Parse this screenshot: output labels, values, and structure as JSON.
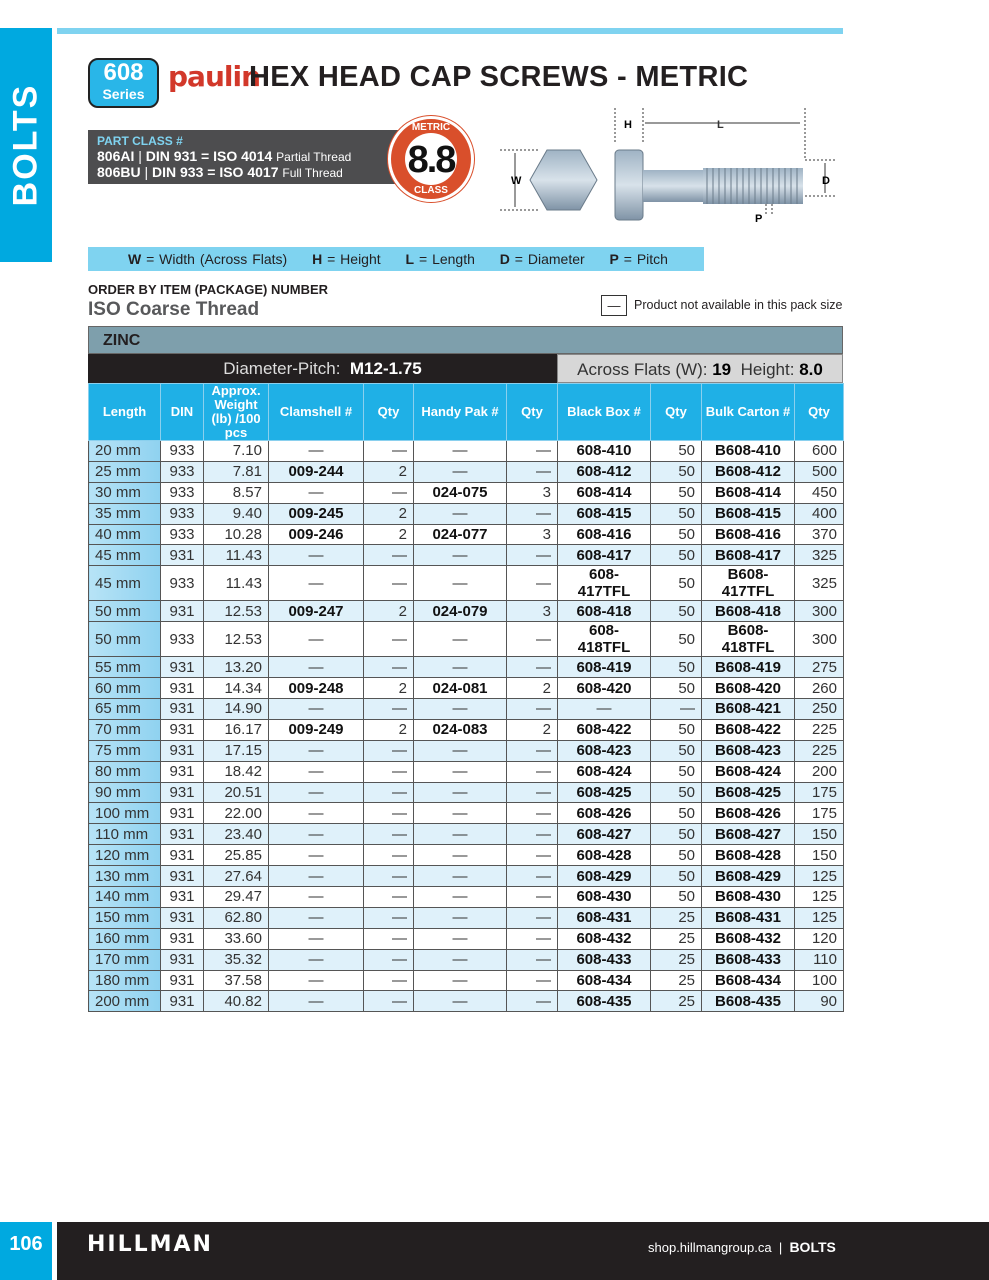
{
  "side_tab": "BOLTS",
  "header": {
    "series_number": "608",
    "series_label": "Series",
    "brand_logo": "paulin",
    "title": "HEX HEAD CAP SCREWS - METRIC"
  },
  "part_class": {
    "heading": "PART CLASS #",
    "lines": [
      {
        "code": "806AI",
        "spec": "DIN 931 = ISO 4014",
        "desc": "Partial Thread"
      },
      {
        "code": "806BU",
        "spec": "DIN 933 = ISO 4017",
        "desc": "Full Thread"
      }
    ]
  },
  "grade_badge": {
    "top": "METRIC",
    "value": "8.8",
    "bottom": "CLASS"
  },
  "diagram_labels": {
    "h": "H",
    "l": "L",
    "w": "W",
    "d": "D",
    "p": "P"
  },
  "legend": [
    {
      "k": "W",
      "v": "= Width (Across Flats)"
    },
    {
      "k": "H",
      "v": "= Height"
    },
    {
      "k": "L",
      "v": "= Length"
    },
    {
      "k": "D",
      "v": "= Diameter"
    },
    {
      "k": "P",
      "v": "= Pitch"
    }
  ],
  "order_label": "ORDER BY ITEM (PACKAGE) NUMBER",
  "thread_label": "ISO Coarse Thread",
  "not_available": {
    "symbol": "—",
    "text": "Product not available in this pack size"
  },
  "finish": "ZINC",
  "diameter_pitch": {
    "label": "Diameter-Pitch:",
    "value": "M12-1.75"
  },
  "across_flats": {
    "label": "Across Flats (W):",
    "value": "19",
    "height_label": "Height:",
    "height_value": "8.0"
  },
  "columns": [
    "Length",
    "DIN",
    "Approx. Weight (lb) /100 pcs",
    "Clamshell #",
    "Qty",
    "Handy Pak #",
    "Qty",
    "Black Box #",
    "Qty",
    "Bulk Carton #",
    "Qty"
  ],
  "rows": [
    [
      "20 mm",
      "933",
      "7.10",
      "—",
      "—",
      "—",
      "—",
      "608-410",
      "50",
      "B608-410",
      "600"
    ],
    [
      "25 mm",
      "933",
      "7.81",
      "009-244",
      "2",
      "—",
      "—",
      "608-412",
      "50",
      "B608-412",
      "500"
    ],
    [
      "30 mm",
      "933",
      "8.57",
      "—",
      "—",
      "024-075",
      "3",
      "608-414",
      "50",
      "B608-414",
      "450"
    ],
    [
      "35 mm",
      "933",
      "9.40",
      "009-245",
      "2",
      "—",
      "—",
      "608-415",
      "50",
      "B608-415",
      "400"
    ],
    [
      "40 mm",
      "933",
      "10.28",
      "009-246",
      "2",
      "024-077",
      "3",
      "608-416",
      "50",
      "B608-416",
      "370"
    ],
    [
      "45 mm",
      "931",
      "11.43",
      "—",
      "—",
      "—",
      "—",
      "608-417",
      "50",
      "B608-417",
      "325"
    ],
    [
      "45 mm",
      "933",
      "11.43",
      "—",
      "—",
      "—",
      "—",
      "608-417TFL",
      "50",
      "B608-417TFL",
      "325"
    ],
    [
      "50 mm",
      "931",
      "12.53",
      "009-247",
      "2",
      "024-079",
      "3",
      "608-418",
      "50",
      "B608-418",
      "300"
    ],
    [
      "50 mm",
      "933",
      "12.53",
      "—",
      "—",
      "—",
      "—",
      "608-418TFL",
      "50",
      "B608-418TFL",
      "300"
    ],
    [
      "55 mm",
      "931",
      "13.20",
      "—",
      "—",
      "—",
      "—",
      "608-419",
      "50",
      "B608-419",
      "275"
    ],
    [
      "60 mm",
      "931",
      "14.34",
      "009-248",
      "2",
      "024-081",
      "2",
      "608-420",
      "50",
      "B608-420",
      "260"
    ],
    [
      "65 mm",
      "931",
      "14.90",
      "—",
      "—",
      "—",
      "—",
      "—",
      "—",
      "B608-421",
      "250"
    ],
    [
      "70 mm",
      "931",
      "16.17",
      "009-249",
      "2",
      "024-083",
      "2",
      "608-422",
      "50",
      "B608-422",
      "225"
    ],
    [
      "75 mm",
      "931",
      "17.15",
      "—",
      "—",
      "—",
      "—",
      "608-423",
      "50",
      "B608-423",
      "225"
    ],
    [
      "80 mm",
      "931",
      "18.42",
      "—",
      "—",
      "—",
      "—",
      "608-424",
      "50",
      "B608-424",
      "200"
    ],
    [
      "90 mm",
      "931",
      "20.51",
      "—",
      "—",
      "—",
      "—",
      "608-425",
      "50",
      "B608-425",
      "175"
    ],
    [
      "100 mm",
      "931",
      "22.00",
      "—",
      "—",
      "—",
      "—",
      "608-426",
      "50",
      "B608-426",
      "175"
    ],
    [
      "110 mm",
      "931",
      "23.40",
      "—",
      "—",
      "—",
      "—",
      "608-427",
      "50",
      "B608-427",
      "150"
    ],
    [
      "120 mm",
      "931",
      "25.85",
      "—",
      "—",
      "—",
      "—",
      "608-428",
      "50",
      "B608-428",
      "150"
    ],
    [
      "130 mm",
      "931",
      "27.64",
      "—",
      "—",
      "—",
      "—",
      "608-429",
      "50",
      "B608-429",
      "125"
    ],
    [
      "140 mm",
      "931",
      "29.47",
      "—",
      "—",
      "—",
      "—",
      "608-430",
      "50",
      "B608-430",
      "125"
    ],
    [
      "150 mm",
      "931",
      "62.80",
      "—",
      "—",
      "—",
      "—",
      "608-431",
      "25",
      "B608-431",
      "125"
    ],
    [
      "160 mm",
      "931",
      "33.60",
      "—",
      "—",
      "—",
      "—",
      "608-432",
      "25",
      "B608-432",
      "120"
    ],
    [
      "170 mm",
      "931",
      "35.32",
      "—",
      "—",
      "—",
      "—",
      "608-433",
      "25",
      "B608-433",
      "110"
    ],
    [
      "180 mm",
      "931",
      "37.58",
      "—",
      "—",
      "—",
      "—",
      "608-434",
      "25",
      "B608-434",
      "100"
    ],
    [
      "200 mm",
      "931",
      "40.82",
      "—",
      "—",
      "—",
      "—",
      "608-435",
      "25",
      "B608-435",
      "90"
    ]
  ],
  "footer": {
    "page": "106",
    "brand": "HILLMAN",
    "site": "shop.hillmangroup.ca",
    "separator": "|",
    "section": "BOLTS"
  },
  "colors": {
    "accent": "#00a9e0",
    "header_blue": "#1fb0e6",
    "row_alt": "#dff1fa",
    "badge": "#d94f2b",
    "zinc_bar": "#7e9fac"
  }
}
